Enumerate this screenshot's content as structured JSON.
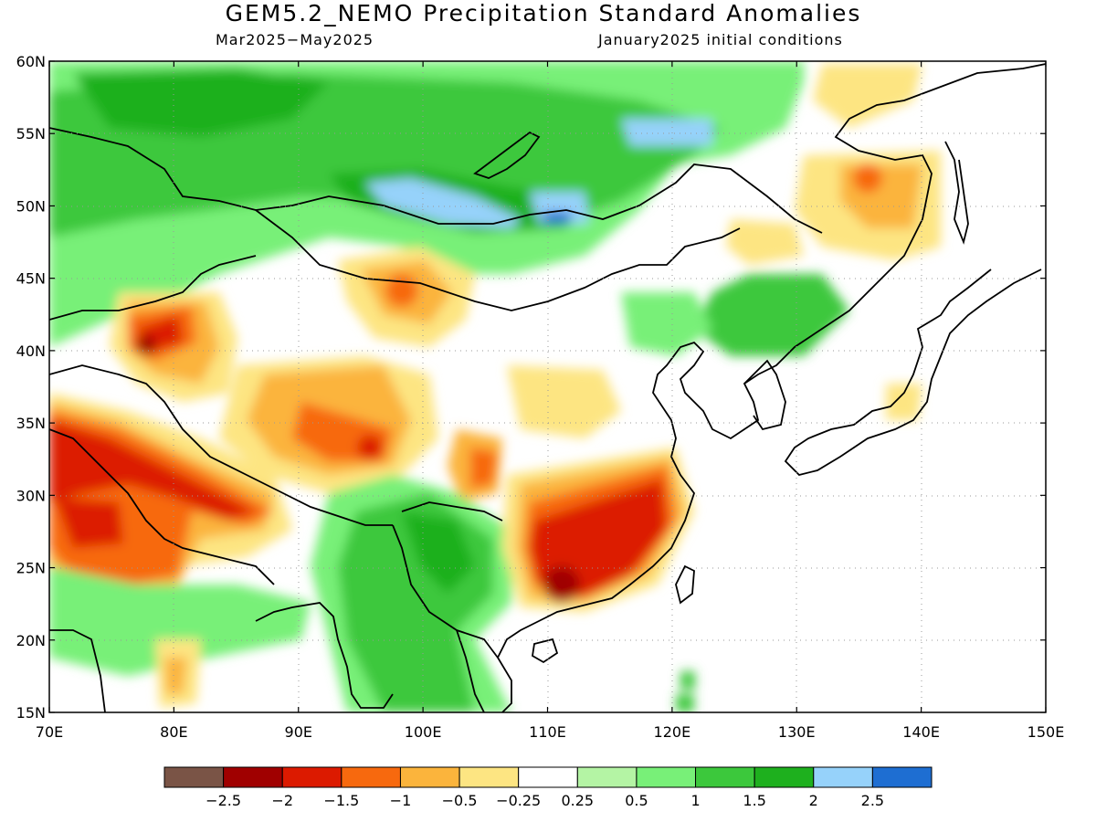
{
  "title": "GEM5.2_NEMO Precipitation Standard Anomalies",
  "period": "Mar2025−May2025",
  "init": "January2025 initial conditions",
  "map": {
    "lon_range": [
      70,
      150
    ],
    "lat_range": [
      15,
      60
    ],
    "lon_ticks": [
      "70E",
      "80E",
      "90E",
      "100E",
      "110E",
      "120E",
      "130E",
      "140E",
      "150E"
    ],
    "lat_ticks": [
      "60N",
      "55N",
      "50N",
      "45N",
      "40N",
      "35N",
      "30N",
      "25N",
      "20N",
      "15N"
    ]
  },
  "colorbar": {
    "colors": [
      "#7a5446",
      "#a00000",
      "#dc1a00",
      "#f7690e",
      "#fbb43c",
      "#fde582",
      "#ffffff",
      "#b4f4a4",
      "#78f078",
      "#3cc83c",
      "#1eb01e",
      "#96d2fa",
      "#1e6ed2"
    ],
    "labels": [
      "−2.5",
      "−2",
      "−1.5",
      "−1",
      "−0.5",
      "−0.25",
      "0.25",
      "0.5",
      "1",
      "1.5",
      "2",
      "2.5"
    ]
  }
}
